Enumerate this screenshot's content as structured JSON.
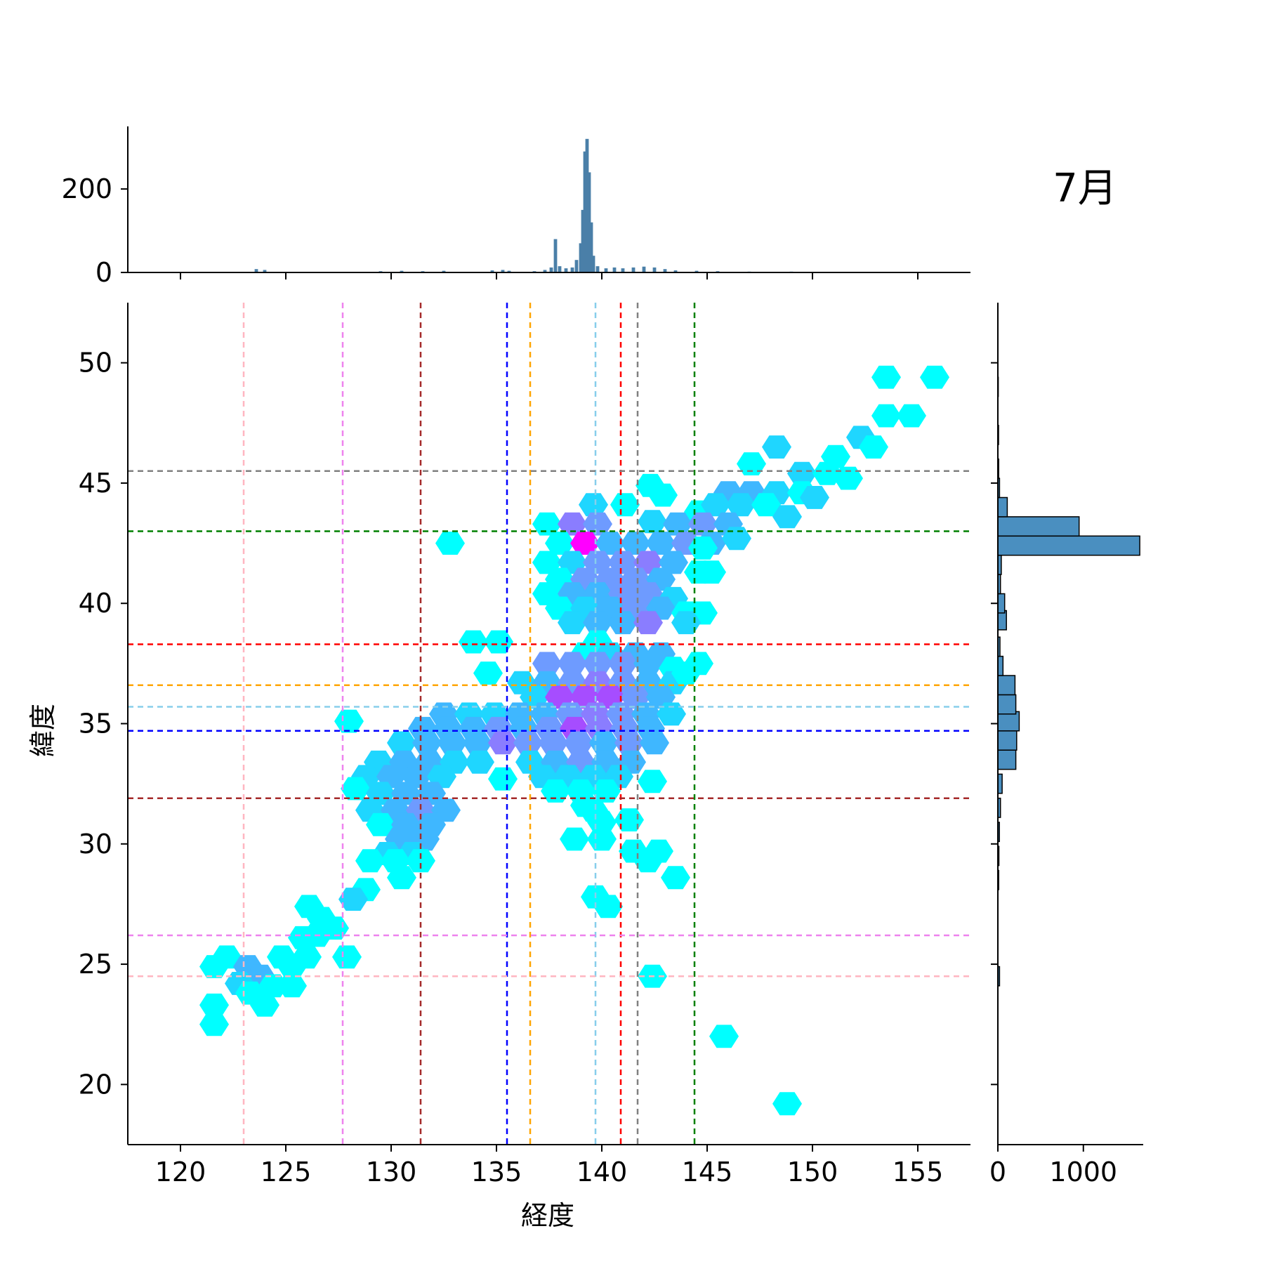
{
  "chart_data": {
    "type": "hexbin",
    "title": "7月",
    "xlabel": "経度",
    "ylabel": "緯度",
    "xlim": [
      117.5,
      157.5
    ],
    "ylim": [
      17.5,
      52.5
    ],
    "xticks": [
      120,
      125,
      130,
      135,
      140,
      145,
      150,
      155
    ],
    "yticks": [
      20,
      25,
      30,
      35,
      40,
      45,
      50
    ],
    "x_tick_labels": [
      "120",
      "125",
      "130",
      "135",
      "140",
      "145",
      "150",
      "155"
    ],
    "y_tick_labels": [
      "20",
      "25",
      "30",
      "35",
      "40",
      "45",
      "50"
    ],
    "top_marginal": {
      "type": "histogram",
      "ylim": [
        0,
        350
      ],
      "yticks": [
        0,
        200
      ],
      "ytick_labels": [
        "0",
        "200"
      ],
      "color": "#4a7fa8",
      "bins": [
        [
          123.6,
          8
        ],
        [
          124.0,
          6
        ],
        [
          129.5,
          3
        ],
        [
          130.5,
          4
        ],
        [
          131.5,
          3
        ],
        [
          132.5,
          4
        ],
        [
          134.8,
          5
        ],
        [
          135.3,
          6
        ],
        [
          135.6,
          4
        ],
        [
          136.8,
          3
        ],
        [
          137.3,
          6
        ],
        [
          137.6,
          12
        ],
        [
          137.8,
          80
        ],
        [
          138.0,
          15
        ],
        [
          138.3,
          10
        ],
        [
          138.6,
          12
        ],
        [
          138.8,
          30
        ],
        [
          139.0,
          70
        ],
        [
          139.1,
          150
        ],
        [
          139.2,
          290
        ],
        [
          139.3,
          320
        ],
        [
          139.4,
          240
        ],
        [
          139.5,
          120
        ],
        [
          139.6,
          40
        ],
        [
          139.8,
          15
        ],
        [
          140.2,
          10
        ],
        [
          140.6,
          12
        ],
        [
          141.0,
          10
        ],
        [
          141.5,
          12
        ],
        [
          142.0,
          14
        ],
        [
          142.5,
          12
        ],
        [
          143.0,
          8
        ],
        [
          143.5,
          5
        ],
        [
          144.5,
          4
        ],
        [
          145.5,
          3
        ],
        [
          147.0,
          2
        ],
        [
          149.0,
          2
        ]
      ]
    },
    "right_marginal": {
      "type": "histogram",
      "xlim": [
        0,
        1700
      ],
      "xticks": [
        0,
        1000
      ],
      "xtick_labels": [
        "0",
        "1000"
      ],
      "color": "#4a8fc0",
      "bins": [
        [
          24.5,
          20
        ],
        [
          28.5,
          10
        ],
        [
          29.5,
          12
        ],
        [
          30.5,
          18
        ],
        [
          31.5,
          30
        ],
        [
          32.5,
          50
        ],
        [
          33.5,
          210
        ],
        [
          34.3,
          220
        ],
        [
          35.1,
          250
        ],
        [
          35.8,
          210
        ],
        [
          36.6,
          200
        ],
        [
          37.4,
          60
        ],
        [
          38.2,
          25
        ],
        [
          39.3,
          100
        ],
        [
          40.0,
          80
        ],
        [
          40.8,
          30
        ],
        [
          41.6,
          40
        ],
        [
          42.4,
          1660
        ],
        [
          43.2,
          950
        ],
        [
          44.0,
          110
        ],
        [
          44.8,
          20
        ],
        [
          45.6,
          10
        ],
        [
          47.0,
          8
        ],
        [
          49.0,
          5
        ]
      ]
    },
    "vertical_lines": [
      {
        "x": 123.0,
        "color": "#ffb6c1"
      },
      {
        "x": 127.7,
        "color": "#ee82ee"
      },
      {
        "x": 131.4,
        "color": "#a52a2a"
      },
      {
        "x": 135.5,
        "color": "#0000ff"
      },
      {
        "x": 136.6,
        "color": "#ffa500"
      },
      {
        "x": 139.7,
        "color": "#87ceeb"
      },
      {
        "x": 140.9,
        "color": "#ff0000"
      },
      {
        "x": 141.7,
        "color": "#808080"
      },
      {
        "x": 144.4,
        "color": "#008000"
      }
    ],
    "horizontal_lines": [
      {
        "y": 45.5,
        "color": "#808080"
      },
      {
        "y": 43.0,
        "color": "#008000"
      },
      {
        "y": 38.3,
        "color": "#ff0000"
      },
      {
        "y": 36.6,
        "color": "#ffa500"
      },
      {
        "y": 35.7,
        "color": "#87ceeb"
      },
      {
        "y": 34.7,
        "color": "#0000ff"
      },
      {
        "y": 31.9,
        "color": "#a52a2a"
      },
      {
        "y": 26.2,
        "color": "#ee82ee"
      },
      {
        "y": 24.5,
        "color": "#ffb6c1"
      }
    ],
    "hexbins": [
      [
        153.5,
        49.4,
        1
      ],
      [
        155.8,
        49.4,
        1
      ],
      [
        153.5,
        47.8,
        1
      ],
      [
        154.7,
        47.8,
        1
      ],
      [
        148.3,
        46.5,
        2
      ],
      [
        152.3,
        46.9,
        2
      ],
      [
        151.1,
        46.1,
        1
      ],
      [
        152.9,
        46.5,
        1
      ],
      [
        147.1,
        45.8,
        1
      ],
      [
        149.5,
        45.4,
        2
      ],
      [
        150.7,
        45.4,
        1
      ],
      [
        151.7,
        45.2,
        1
      ],
      [
        142.3,
        44.9,
        1
      ],
      [
        146.0,
        44.6,
        3
      ],
      [
        147.1,
        44.6,
        3
      ],
      [
        148.3,
        44.6,
        2
      ],
      [
        149.5,
        44.6,
        1
      ],
      [
        150.1,
        44.4,
        2
      ],
      [
        139.6,
        44.1,
        2
      ],
      [
        141.1,
        44.1,
        1
      ],
      [
        142.9,
        44.5,
        1
      ],
      [
        144.6,
        43.8,
        1
      ],
      [
        145.4,
        44.1,
        2
      ],
      [
        146.6,
        44.1,
        2
      ],
      [
        147.8,
        44.1,
        1
      ],
      [
        148.8,
        43.6,
        2
      ],
      [
        137.4,
        43.3,
        1
      ],
      [
        138.6,
        43.3,
        5
      ],
      [
        139.8,
        43.3,
        4
      ],
      [
        142.4,
        43.4,
        2
      ],
      [
        143.6,
        43.3,
        3
      ],
      [
        144.8,
        43.3,
        4
      ],
      [
        146.0,
        43.3,
        3
      ],
      [
        132.8,
        42.5,
        1
      ],
      [
        138.0,
        42.5,
        1
      ],
      [
        139.2,
        42.5,
        9
      ],
      [
        140.4,
        42.5,
        3
      ],
      [
        141.6,
        42.5,
        3
      ],
      [
        142.8,
        42.5,
        3
      ],
      [
        144.0,
        42.5,
        4
      ],
      [
        145.2,
        42.5,
        3
      ],
      [
        146.4,
        42.7,
        2
      ],
      [
        144.8,
        42.3,
        1
      ],
      [
        137.4,
        41.7,
        1
      ],
      [
        138.6,
        41.7,
        2
      ],
      [
        139.8,
        41.7,
        4
      ],
      [
        141.0,
        41.7,
        4
      ],
      [
        142.2,
        41.7,
        5
      ],
      [
        143.4,
        41.7,
        3
      ],
      [
        144.6,
        41.3,
        1
      ],
      [
        145.2,
        41.3,
        1
      ],
      [
        138.0,
        41.0,
        1
      ],
      [
        139.2,
        41.0,
        4
      ],
      [
        140.4,
        41.0,
        4
      ],
      [
        141.6,
        41.0,
        4
      ],
      [
        142.8,
        41.0,
        3
      ],
      [
        137.4,
        40.4,
        1
      ],
      [
        138.6,
        40.4,
        3
      ],
      [
        139.8,
        40.4,
        3
      ],
      [
        141.0,
        40.4,
        4
      ],
      [
        142.2,
        40.4,
        4
      ],
      [
        143.4,
        40.2,
        2
      ],
      [
        138.0,
        39.8,
        1
      ],
      [
        139.2,
        39.8,
        2
      ],
      [
        140.4,
        39.8,
        3
      ],
      [
        141.6,
        39.8,
        4
      ],
      [
        142.8,
        39.8,
        3
      ],
      [
        144.0,
        39.6,
        1
      ],
      [
        144.8,
        39.6,
        1
      ],
      [
        138.6,
        39.2,
        2
      ],
      [
        139.8,
        39.2,
        3
      ],
      [
        141.0,
        39.2,
        3
      ],
      [
        142.2,
        39.2,
        5
      ],
      [
        144.0,
        39.2,
        2
      ],
      [
        133.9,
        38.4,
        1
      ],
      [
        135.1,
        38.4,
        1
      ],
      [
        139.8,
        38.4,
        1
      ],
      [
        139.2,
        37.9,
        1
      ],
      [
        140.4,
        37.9,
        2
      ],
      [
        141.6,
        37.9,
        3
      ],
      [
        142.8,
        37.9,
        3
      ],
      [
        134.6,
        37.1,
        1
      ],
      [
        137.4,
        37.5,
        4
      ],
      [
        138.6,
        37.5,
        4
      ],
      [
        139.8,
        37.5,
        4
      ],
      [
        141.0,
        37.5,
        4
      ],
      [
        142.2,
        37.5,
        3
      ],
      [
        143.4,
        37.3,
        1
      ],
      [
        144.6,
        37.5,
        1
      ],
      [
        136.2,
        36.7,
        2
      ],
      [
        137.4,
        36.7,
        3
      ],
      [
        138.6,
        36.7,
        4
      ],
      [
        139.8,
        36.7,
        5
      ],
      [
        141.0,
        36.7,
        4
      ],
      [
        142.2,
        36.7,
        3
      ],
      [
        143.4,
        36.7,
        2
      ],
      [
        144.0,
        37.1,
        1
      ],
      [
        136.8,
        36.1,
        2
      ],
      [
        138.0,
        36.1,
        6
      ],
      [
        139.2,
        36.1,
        6
      ],
      [
        140.4,
        36.1,
        7
      ],
      [
        141.6,
        36.1,
        4
      ],
      [
        142.8,
        36.1,
        3
      ],
      [
        128.0,
        35.1,
        1
      ],
      [
        132.5,
        35.4,
        3
      ],
      [
        133.7,
        35.4,
        2
      ],
      [
        134.9,
        35.4,
        2
      ],
      [
        136.1,
        35.4,
        3
      ],
      [
        137.3,
        35.4,
        3
      ],
      [
        138.5,
        35.4,
        4
      ],
      [
        139.7,
        35.4,
        5
      ],
      [
        140.9,
        35.4,
        4
      ],
      [
        142.1,
        35.4,
        3
      ],
      [
        143.3,
        35.4,
        2
      ],
      [
        131.5,
        34.8,
        3
      ],
      [
        132.7,
        34.8,
        3
      ],
      [
        133.9,
        34.8,
        3
      ],
      [
        135.1,
        34.8,
        4
      ],
      [
        136.3,
        34.8,
        3
      ],
      [
        137.5,
        34.8,
        4
      ],
      [
        138.7,
        34.8,
        6
      ],
      [
        139.9,
        34.8,
        5
      ],
      [
        141.1,
        34.8,
        4
      ],
      [
        142.3,
        34.8,
        3
      ],
      [
        130.5,
        34.2,
        2
      ],
      [
        131.7,
        34.2,
        3
      ],
      [
        132.9,
        34.2,
        3
      ],
      [
        134.1,
        34.2,
        3
      ],
      [
        135.3,
        34.2,
        5
      ],
      [
        136.5,
        34.2,
        4
      ],
      [
        137.7,
        34.2,
        4
      ],
      [
        138.9,
        34.2,
        4
      ],
      [
        140.1,
        34.2,
        3
      ],
      [
        141.3,
        34.2,
        4
      ],
      [
        142.5,
        34.2,
        3
      ],
      [
        129.4,
        33.4,
        2
      ],
      [
        130.6,
        33.4,
        3
      ],
      [
        131.8,
        33.4,
        3
      ],
      [
        133.0,
        33.4,
        2
      ],
      [
        134.2,
        33.4,
        2
      ],
      [
        136.6,
        33.4,
        2
      ],
      [
        137.8,
        33.4,
        3
      ],
      [
        139.0,
        33.4,
        4
      ],
      [
        140.2,
        33.4,
        3
      ],
      [
        141.4,
        33.4,
        3
      ],
      [
        128.8,
        32.8,
        2
      ],
      [
        130.0,
        32.8,
        3
      ],
      [
        131.2,
        32.8,
        3
      ],
      [
        132.4,
        32.8,
        2
      ],
      [
        135.3,
        32.7,
        1
      ],
      [
        137.2,
        32.8,
        2
      ],
      [
        138.4,
        32.8,
        2
      ],
      [
        139.6,
        32.8,
        2
      ],
      [
        140.8,
        32.8,
        2
      ],
      [
        142.4,
        32.6,
        1
      ],
      [
        128.3,
        32.3,
        1
      ],
      [
        129.5,
        32.1,
        2
      ],
      [
        130.7,
        32.1,
        3
      ],
      [
        131.9,
        32.1,
        3
      ],
      [
        137.8,
        32.2,
        1
      ],
      [
        139.0,
        32.2,
        1
      ],
      [
        140.2,
        32.2,
        1
      ],
      [
        129.0,
        31.4,
        2
      ],
      [
        130.2,
        31.4,
        3
      ],
      [
        131.4,
        31.4,
        4
      ],
      [
        132.6,
        31.4,
        3
      ],
      [
        139.6,
        31.4,
        1
      ],
      [
        141.3,
        31.0,
        1
      ],
      [
        139.2,
        31.6,
        1
      ],
      [
        129.5,
        30.8,
        1
      ],
      [
        130.7,
        30.8,
        3
      ],
      [
        131.9,
        30.8,
        3
      ],
      [
        140.0,
        30.9,
        1
      ],
      [
        130.4,
        30.2,
        3
      ],
      [
        131.6,
        30.2,
        3
      ],
      [
        138.7,
        30.2,
        1
      ],
      [
        140.0,
        30.2,
        1
      ],
      [
        129.8,
        29.6,
        2
      ],
      [
        131.0,
        29.6,
        2
      ],
      [
        141.5,
        29.7,
        1
      ],
      [
        142.7,
        29.7,
        1
      ],
      [
        129.0,
        29.3,
        1
      ],
      [
        130.2,
        29.3,
        1
      ],
      [
        131.4,
        29.3,
        1
      ],
      [
        142.2,
        29.3,
        1
      ],
      [
        130.5,
        28.6,
        1
      ],
      [
        143.5,
        28.6,
        1
      ],
      [
        128.8,
        28.1,
        1
      ],
      [
        128.2,
        27.7,
        2
      ],
      [
        139.7,
        27.8,
        1
      ],
      [
        140.3,
        27.4,
        1
      ],
      [
        126.1,
        27.4,
        1
      ],
      [
        126.7,
        26.9,
        1
      ],
      [
        127.3,
        26.5,
        1
      ],
      [
        126.5,
        26.2,
        1
      ],
      [
        125.8,
        26.1,
        1
      ],
      [
        127.9,
        25.3,
        1
      ],
      [
        124.8,
        25.3,
        1
      ],
      [
        126.0,
        25.3,
        1
      ],
      [
        122.2,
        25.3,
        1
      ],
      [
        121.6,
        24.9,
        1
      ],
      [
        123.2,
        24.9,
        3
      ],
      [
        125.3,
        24.9,
        1
      ],
      [
        123.8,
        24.5,
        3
      ],
      [
        122.8,
        24.2,
        2
      ],
      [
        124.4,
        24.1,
        1
      ],
      [
        125.3,
        24.1,
        1
      ],
      [
        123.3,
        23.8,
        1
      ],
      [
        124.0,
        23.3,
        1
      ],
      [
        121.6,
        23.3,
        1
      ],
      [
        121.6,
        22.5,
        1
      ],
      [
        142.4,
        24.5,
        1
      ],
      [
        145.8,
        22.0,
        1
      ],
      [
        148.8,
        19.2,
        1
      ]
    ]
  }
}
